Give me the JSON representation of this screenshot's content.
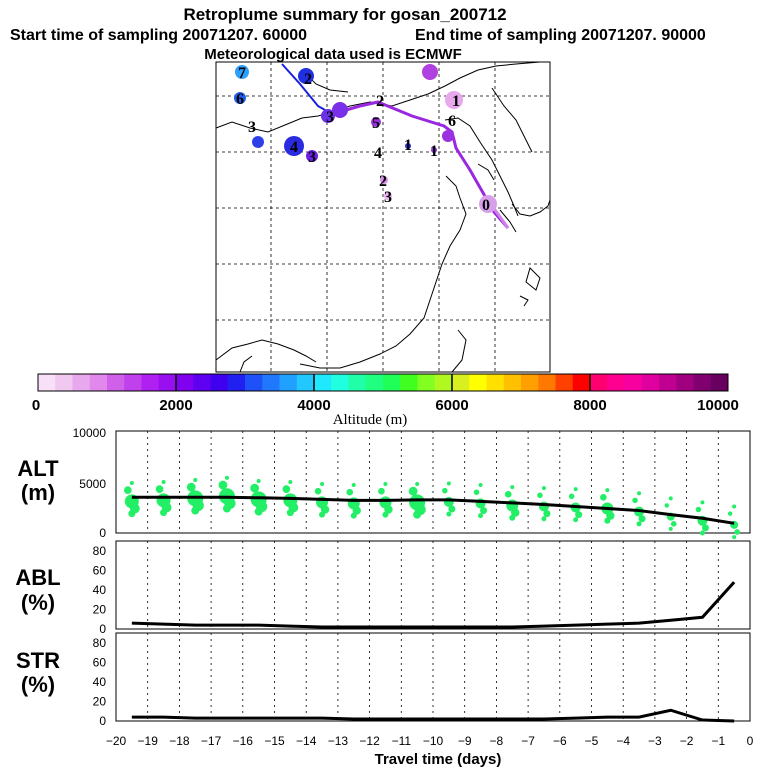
{
  "header": {
    "title": "Retroplume summary for gosan_200712",
    "start_label": "Start time of sampling 20071207. 60000",
    "end_label": "End time of sampling 20071207. 90000",
    "met_label": "Meteorological data used is ECMWF"
  },
  "colorbar": {
    "title": "Altitude (m)",
    "ticks": [
      "0",
      "2000",
      "4000",
      "6000",
      "8000",
      "10000"
    ],
    "colors": [
      "#f8e0f8",
      "#f0c8f0",
      "#e8a8ee",
      "#e088ec",
      "#d060ea",
      "#c040ec",
      "#b020f0",
      "#9810f0",
      "#8000f0",
      "#6000f0",
      "#4000f0",
      "#2020f0",
      "#2050f8",
      "#2078fc",
      "#20a0ff",
      "#20c8ff",
      "#20e8ff",
      "#20ffe0",
      "#20ffa8",
      "#20ff80",
      "#20ff58",
      "#40ff20",
      "#80ff20",
      "#b0f820",
      "#d8f020",
      "#ffff00",
      "#ffe000",
      "#ffc000",
      "#ffa000",
      "#ff7800",
      "#ff4000",
      "#ff0000",
      "#ff0070",
      "#ff0090",
      "#f800a0",
      "#e000a0",
      "#c00090",
      "#a00080",
      "#800070",
      "#680060"
    ]
  },
  "map": {
    "labels": [
      "7",
      "6",
      "3",
      "3",
      "4",
      "3",
      "5",
      "2",
      "4",
      "1",
      "1",
      "2",
      "3",
      "1",
      "6",
      "2",
      "0"
    ]
  },
  "chart_data": [
    {
      "type": "scatter",
      "name": "altitude",
      "ylabel_line1": "ALT",
      "ylabel_line2": "(m)",
      "ylim": [
        0,
        10000
      ],
      "yticks": [
        "0",
        "5000",
        "10000"
      ],
      "x": [
        -19.5,
        -18.5,
        -17.5,
        -16.5,
        -15.5,
        -14.5,
        -13.5,
        -12.5,
        -11.5,
        -10.5,
        -9.5,
        -8.5,
        -7.5,
        -6.5,
        -5.5,
        -4.5,
        -3.5,
        -2.5,
        -1.5,
        -0.5
      ],
      "values": [
        3500,
        3500,
        3500,
        3500,
        3450,
        3400,
        3300,
        3200,
        3200,
        3250,
        3250,
        3100,
        2950,
        2800,
        2600,
        2400,
        2200,
        1800,
        1450,
        950
      ],
      "cluster_centers": [
        3100,
        3200,
        3400,
        3600,
        3300,
        3200,
        3000,
        2900,
        3000,
        3000,
        3050,
        2900,
        2700,
        2600,
        2500,
        2400,
        2100,
        1600,
        1200,
        800
      ],
      "bubble_sizes": [
        7,
        7,
        8,
        8,
        8,
        7,
        6,
        6,
        6,
        8,
        5,
        5,
        6,
        5,
        5,
        6,
        5,
        4,
        5,
        4
      ]
    },
    {
      "type": "line",
      "name": "abl",
      "ylabel_line1": "ABL",
      "ylabel_line2": "(%)",
      "ylim": [
        0,
        90
      ],
      "yticks": [
        "0",
        "20",
        "40",
        "60",
        "80"
      ],
      "x": [
        -19.5,
        -18.5,
        -17.5,
        -16.5,
        -15.5,
        -14.5,
        -13.5,
        -12.5,
        -11.5,
        -10.5,
        -9.5,
        -8.5,
        -7.5,
        -6.5,
        -5.5,
        -4.5,
        -3.5,
        -2.5,
        -1.5,
        -0.5
      ],
      "values": [
        6,
        5,
        4,
        4,
        4,
        3,
        2,
        2,
        2,
        2,
        2,
        2,
        2,
        3,
        4,
        5,
        6,
        9,
        12,
        48
      ]
    },
    {
      "type": "line",
      "name": "str",
      "ylabel_line1": "STR",
      "ylabel_line2": "(%)",
      "ylim": [
        0,
        90
      ],
      "yticks": [
        "0",
        "20",
        "40",
        "60",
        "80"
      ],
      "x": [
        -19.5,
        -18.5,
        -17.5,
        -16.5,
        -15.5,
        -14.5,
        -13.5,
        -12.5,
        -11.5,
        -10.5,
        -9.5,
        -8.5,
        -7.5,
        -6.5,
        -5.5,
        -4.5,
        -3.5,
        -2.5,
        -1.5,
        -0.5
      ],
      "values": [
        4,
        4,
        3,
        3,
        3,
        3,
        3,
        2,
        2,
        2,
        2,
        2,
        2,
        2,
        3,
        4,
        4,
        11,
        1,
        0
      ]
    }
  ],
  "xaxis": {
    "xlabel": "Travel time (days)",
    "ticks": [
      "−20",
      "−19",
      "−18",
      "−17",
      "−16",
      "−15",
      "−14",
      "−13",
      "−12",
      "−11",
      "−10",
      "−9",
      "−8",
      "−7",
      "−6",
      "−5",
      "−4",
      "−3",
      "−2",
      "−1",
      "0"
    ]
  }
}
